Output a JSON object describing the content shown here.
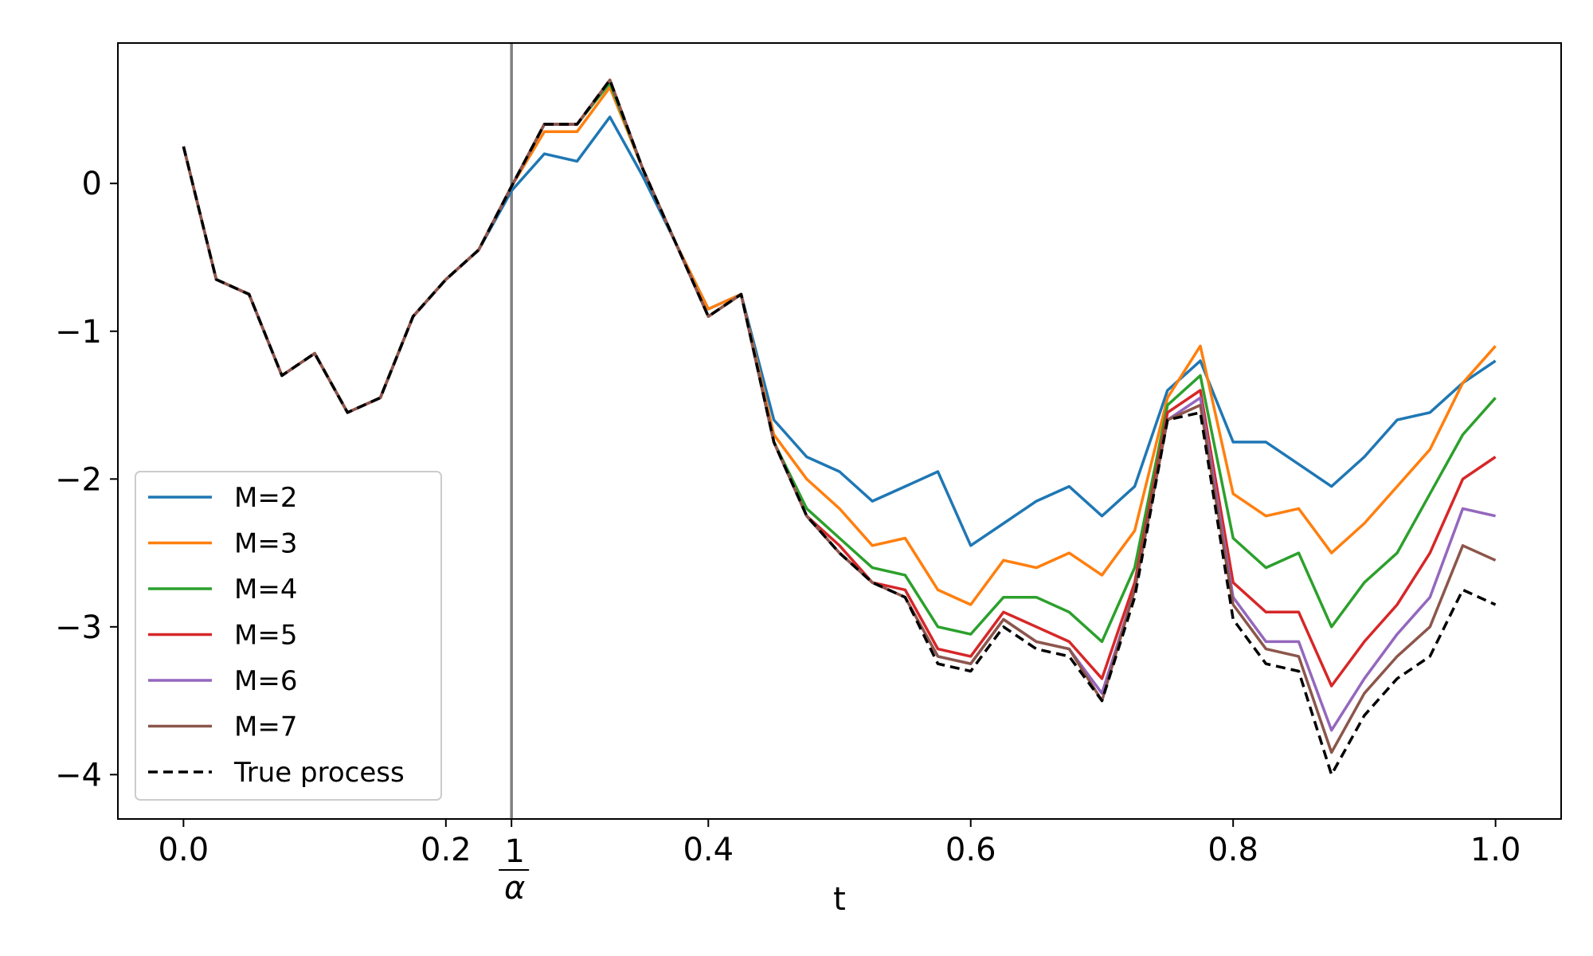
{
  "chart_data": {
    "type": "line",
    "title": "",
    "xlabel": "t",
    "ylabel": "",
    "xlim": [
      -0.05,
      1.05
    ],
    "ylim": [
      -4.3,
      0.95
    ],
    "x_ticks": [
      {
        "value": 0.0,
        "label": "0.0"
      },
      {
        "value": 0.2,
        "label": "0.2"
      },
      {
        "value": 0.4,
        "label": "0.4"
      },
      {
        "value": 0.6,
        "label": "0.6"
      },
      {
        "value": 0.8,
        "label": "0.8"
      },
      {
        "value": 1.0,
        "label": "1.0"
      }
    ],
    "y_ticks": [
      {
        "value": 0,
        "label": "0"
      },
      {
        "value": -1,
        "label": "−1"
      },
      {
        "value": -2,
        "label": "−2"
      },
      {
        "value": -3,
        "label": "−3"
      },
      {
        "value": -4,
        "label": "−4"
      }
    ],
    "vline": {
      "x": 0.25,
      "label_numerator": "1",
      "label_denominator": "α",
      "color": "#808080"
    },
    "grid": false,
    "legend_position": "lower-left",
    "shared_x": [
      0.0,
      0.025,
      0.05,
      0.075,
      0.1,
      0.125,
      0.15,
      0.175,
      0.2,
      0.225,
      0.25,
      0.275,
      0.3,
      0.325,
      0.35,
      0.375,
      0.4,
      0.425,
      0.45,
      0.475,
      0.5,
      0.525,
      0.55,
      0.575,
      0.6,
      0.625,
      0.65,
      0.675,
      0.7,
      0.725,
      0.75,
      0.775,
      0.8,
      0.825,
      0.85,
      0.875,
      0.9,
      0.925,
      0.95,
      0.975,
      1.0
    ],
    "series": [
      {
        "name": "M=2",
        "color": "#1f77b4",
        "dashed": false,
        "values": [
          0.25,
          -0.65,
          -0.75,
          -1.3,
          -1.15,
          -1.55,
          -1.45,
          -0.9,
          -0.65,
          -0.45,
          -0.05,
          0.2,
          0.15,
          0.45,
          0.05,
          -0.4,
          -0.85,
          -0.75,
          -1.6,
          -1.85,
          -1.95,
          -2.15,
          -2.05,
          -1.95,
          -2.45,
          -2.3,
          -2.15,
          -2.05,
          -2.25,
          -2.05,
          -1.4,
          -1.2,
          -1.75,
          -1.75,
          -1.9,
          -2.05,
          -1.85,
          -1.6,
          -1.55,
          -1.35,
          -1.2
        ]
      },
      {
        "name": "M=3",
        "color": "#ff7f0e",
        "dashed": false,
        "values": [
          0.25,
          -0.65,
          -0.75,
          -1.3,
          -1.15,
          -1.55,
          -1.45,
          -0.9,
          -0.65,
          -0.45,
          -0.02,
          0.35,
          0.35,
          0.65,
          0.1,
          -0.4,
          -0.85,
          -0.75,
          -1.7,
          -2.0,
          -2.2,
          -2.45,
          -2.4,
          -2.75,
          -2.85,
          -2.55,
          -2.6,
          -2.5,
          -2.65,
          -2.35,
          -1.45,
          -1.1,
          -2.1,
          -2.25,
          -2.2,
          -2.5,
          -2.3,
          -2.05,
          -1.8,
          -1.35,
          -1.1
        ]
      },
      {
        "name": "M=4",
        "color": "#2ca02c",
        "dashed": false,
        "values": [
          0.25,
          -0.65,
          -0.75,
          -1.3,
          -1.15,
          -1.55,
          -1.45,
          -0.9,
          -0.65,
          -0.45,
          -0.02,
          0.4,
          0.4,
          0.68,
          0.1,
          -0.4,
          -0.9,
          -0.75,
          -1.75,
          -2.2,
          -2.4,
          -2.6,
          -2.65,
          -3.0,
          -3.05,
          -2.8,
          -2.8,
          -2.9,
          -3.1,
          -2.6,
          -1.5,
          -1.3,
          -2.4,
          -2.6,
          -2.5,
          -3.0,
          -2.7,
          -2.5,
          -2.1,
          -1.7,
          -1.45
        ]
      },
      {
        "name": "M=5",
        "color": "#d62728",
        "dashed": false,
        "values": [
          0.25,
          -0.65,
          -0.75,
          -1.3,
          -1.15,
          -1.55,
          -1.45,
          -0.9,
          -0.65,
          -0.45,
          -0.02,
          0.4,
          0.4,
          0.7,
          0.1,
          -0.4,
          -0.9,
          -0.75,
          -1.75,
          -2.25,
          -2.45,
          -2.7,
          -2.75,
          -3.15,
          -3.2,
          -2.9,
          -3.0,
          -3.1,
          -3.35,
          -2.7,
          -1.55,
          -1.4,
          -2.7,
          -2.9,
          -2.9,
          -3.4,
          -3.1,
          -2.85,
          -2.5,
          -2.0,
          -1.85
        ]
      },
      {
        "name": "M=6",
        "color": "#9467bd",
        "dashed": false,
        "values": [
          0.25,
          -0.65,
          -0.75,
          -1.3,
          -1.15,
          -1.55,
          -1.45,
          -0.9,
          -0.65,
          -0.45,
          -0.02,
          0.4,
          0.4,
          0.7,
          0.1,
          -0.4,
          -0.9,
          -0.75,
          -1.75,
          -2.25,
          -2.5,
          -2.7,
          -2.8,
          -3.2,
          -3.25,
          -2.95,
          -3.1,
          -3.15,
          -3.45,
          -2.75,
          -1.6,
          -1.45,
          -2.8,
          -3.1,
          -3.1,
          -3.7,
          -3.35,
          -3.05,
          -2.8,
          -2.2,
          -2.25
        ]
      },
      {
        "name": "M=7",
        "color": "#8c564b",
        "dashed": false,
        "values": [
          0.25,
          -0.65,
          -0.75,
          -1.3,
          -1.15,
          -1.55,
          -1.45,
          -0.9,
          -0.65,
          -0.45,
          -0.02,
          0.4,
          0.4,
          0.7,
          0.1,
          -0.4,
          -0.9,
          -0.75,
          -1.75,
          -2.25,
          -2.5,
          -2.7,
          -2.8,
          -3.2,
          -3.25,
          -2.95,
          -3.1,
          -3.15,
          -3.5,
          -2.75,
          -1.6,
          -1.5,
          -2.85,
          -3.15,
          -3.2,
          -3.85,
          -3.45,
          -3.2,
          -3.0,
          -2.45,
          -2.55
        ]
      },
      {
        "name": "True process",
        "color": "#000000",
        "dashed": true,
        "values": [
          0.25,
          -0.65,
          -0.75,
          -1.3,
          -1.15,
          -1.55,
          -1.45,
          -0.9,
          -0.65,
          -0.45,
          -0.02,
          0.4,
          0.4,
          0.7,
          0.1,
          -0.4,
          -0.9,
          -0.75,
          -1.75,
          -2.25,
          -2.5,
          -2.7,
          -2.8,
          -3.25,
          -3.3,
          -3.0,
          -3.15,
          -3.2,
          -3.5,
          -2.8,
          -1.6,
          -1.55,
          -2.95,
          -3.25,
          -3.3,
          -4.0,
          -3.6,
          -3.35,
          -3.2,
          -2.75,
          -2.85
        ]
      }
    ]
  }
}
